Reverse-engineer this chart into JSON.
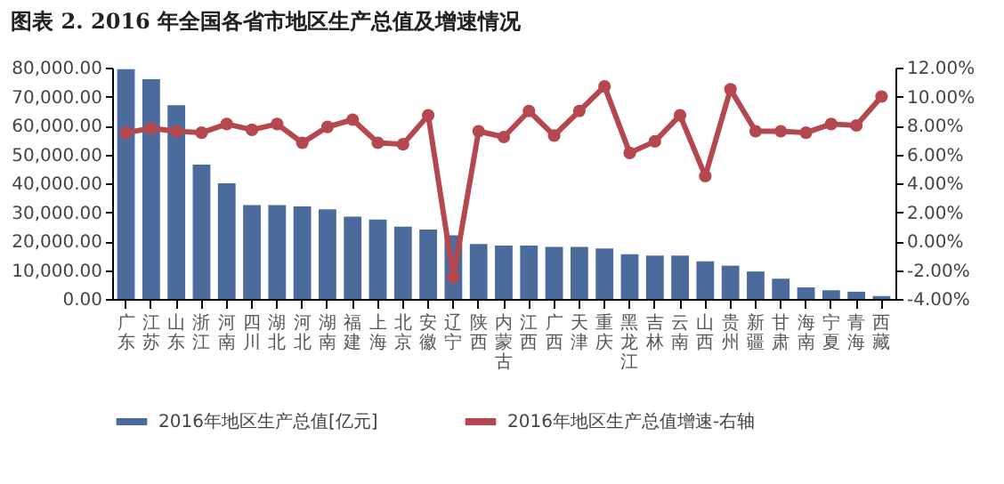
{
  "chart_data": {
    "type": "bar",
    "title": "图表 2.    2016 年全国各省市地区生产总值及增速情况",
    "categories": [
      "广东",
      "江苏",
      "山东",
      "浙江",
      "河南",
      "四川",
      "湖北",
      "河北",
      "湖南",
      "福建",
      "上海",
      "北京",
      "安徽",
      "辽宁",
      "陕西",
      "内蒙古",
      "江西",
      "广西",
      "天津",
      "重庆",
      "黑龙江",
      "吉林",
      "云南",
      "山西",
      "贵州",
      "新疆",
      "甘肃",
      "海南",
      "宁夏",
      "青海",
      "西藏"
    ],
    "series": [
      {
        "name": "2016年地区生产总值[亿元]",
        "color": "#4a6b9c",
        "values": [
          79500,
          76000,
          67000,
          46500,
          40000,
          32500,
          32500,
          32000,
          31000,
          28500,
          27500,
          25000,
          24000,
          22000,
          19000,
          18500,
          18500,
          18000,
          18000,
          17500,
          15500,
          15000,
          15000,
          13000,
          11500,
          9500,
          7000,
          4000,
          3000,
          2500,
          1000
        ]
      },
      {
        "name": "2016年地区生产总值增速-右轴",
        "type": "line",
        "axis": "y2",
        "color": "#b5474f",
        "values": [
          7.5,
          7.8,
          7.6,
          7.5,
          8.1,
          7.7,
          8.1,
          6.8,
          7.9,
          8.4,
          6.8,
          6.7,
          8.7,
          -2.5,
          7.6,
          7.2,
          9.0,
          7.3,
          9.0,
          10.7,
          6.1,
          6.9,
          8.7,
          4.5,
          10.5,
          7.6,
          7.6,
          7.5,
          8.1,
          8.0,
          10.0
        ]
      }
    ],
    "ylim": [
      0,
      80000
    ],
    "yticks": [
      {
        "value": 0,
        "label": "0.00"
      },
      {
        "value": 10000,
        "label": "10,000.00"
      },
      {
        "value": 20000,
        "label": "20,000.00"
      },
      {
        "value": 30000,
        "label": "30,000.00"
      },
      {
        "value": 40000,
        "label": "40,000.00"
      },
      {
        "value": 50000,
        "label": "50,000.00"
      },
      {
        "value": 60000,
        "label": "60,000.00"
      },
      {
        "value": 70000,
        "label": "70,000.00"
      },
      {
        "value": 80000,
        "label": "80,000.00"
      }
    ],
    "y2lim": [
      -4,
      12
    ],
    "y2ticks": [
      {
        "value": -4,
        "label": "-4.00%"
      },
      {
        "value": -2,
        "label": "-2.00%"
      },
      {
        "value": 0,
        "label": "0.00%"
      },
      {
        "value": 2,
        "label": "2.00%"
      },
      {
        "value": 4,
        "label": "4.00%"
      },
      {
        "value": 6,
        "label": "6.00%"
      },
      {
        "value": 8,
        "label": "8.00%"
      },
      {
        "value": 10,
        "label": "10.00%"
      },
      {
        "value": 12,
        "label": "12.00%"
      }
    ],
    "grid": false,
    "legend": "bottom",
    "marker": "circle",
    "line_style": "solid"
  }
}
